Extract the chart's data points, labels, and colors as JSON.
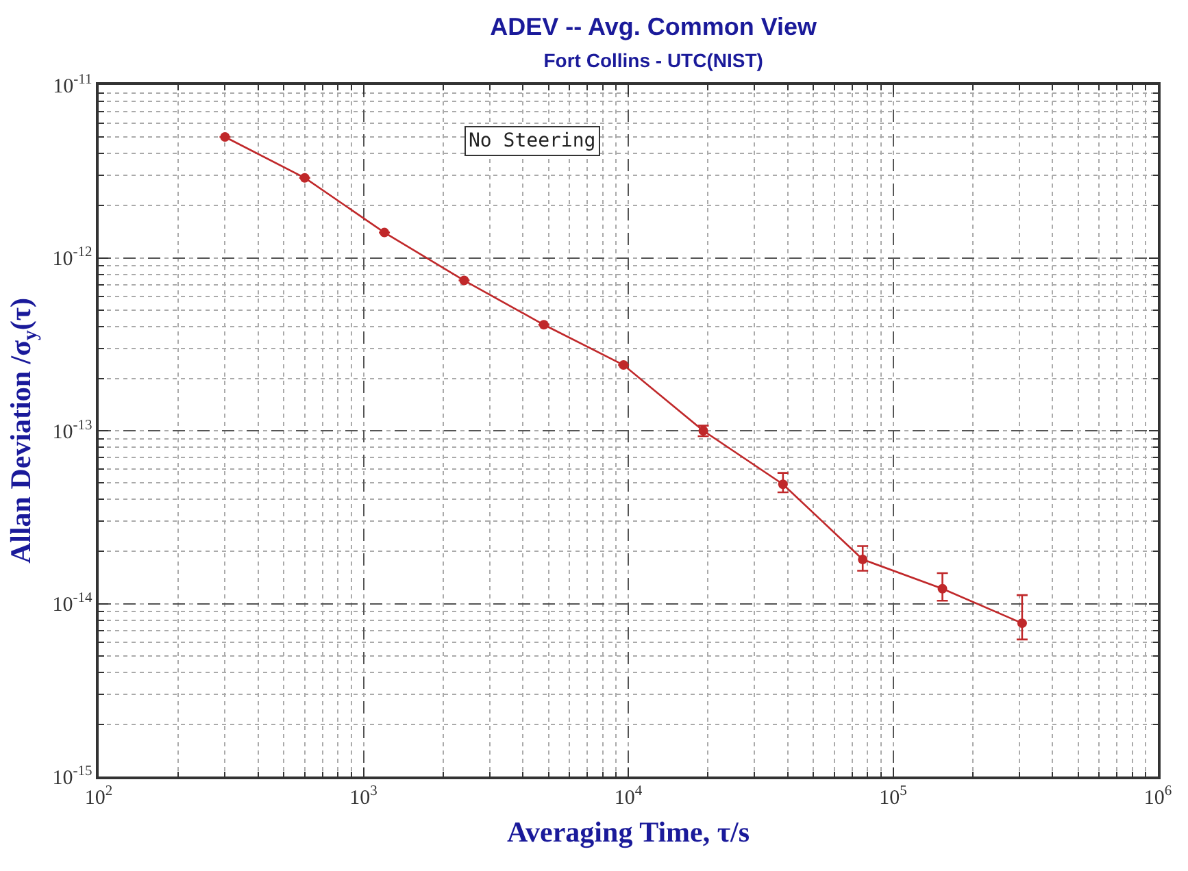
{
  "chart_data": {
    "type": "line",
    "title": "ADEV -- Avg. Common View",
    "subtitle": "Fort Collins - UTC(NIST)",
    "xlabel": "Averaging Time, τ/s",
    "ylabel": "Allan Deviation /σ$_{y}$(τ)",
    "x": [
      300,
      600,
      1200,
      2400,
      4800,
      9600,
      19200,
      38400,
      76800,
      153600,
      307200
    ],
    "series": [
      {
        "color": "#c0282a",
        "values": [
          5e-12,
          2.9e-12,
          1.4e-12,
          7.4e-13,
          4.1e-13,
          2.4e-13,
          1e-13,
          4.9e-14,
          1.8e-14,
          1.22e-14,
          7.7e-15
        ],
        "errors": [
          null,
          null,
          null,
          null,
          null,
          null,
          [
            9.3e-14,
            1.07e-13
          ],
          [
            4.4e-14,
            5.7e-14
          ],
          [
            1.55e-14,
            2.15e-14
          ],
          [
            1.04e-14,
            1.5e-14
          ],
          [
            6.2e-15,
            1.12e-14
          ]
        ]
      }
    ],
    "log": "xy",
    "xlim": [
      100,
      1000000
    ],
    "ylim": [
      1e-15,
      1e-11
    ],
    "xticks": [
      {
        "value": 100,
        "label": "10$^{2}$"
      },
      {
        "value": 1000,
        "label": "10$^{3}$"
      },
      {
        "value": 10000,
        "label": "10$^{4}$"
      },
      {
        "value": 100000,
        "label": "10$^{5}$"
      },
      {
        "value": 1000000,
        "label": "10$^{6}$"
      }
    ],
    "yticks": [
      {
        "value": 1e-15,
        "label": "10$^{-15}$"
      },
      {
        "value": 1e-14,
        "label": "10$^{-14}$"
      },
      {
        "value": 1e-13,
        "label": "10$^{-13}$"
      },
      {
        "value": 1e-12,
        "label": "10$^{-12}$"
      },
      {
        "value": 1e-11,
        "label": "10$^{-11}$"
      }
    ],
    "grid": true,
    "marker": "circle",
    "line_style": "solid",
    "annotations": [
      "No Steering"
    ]
  }
}
